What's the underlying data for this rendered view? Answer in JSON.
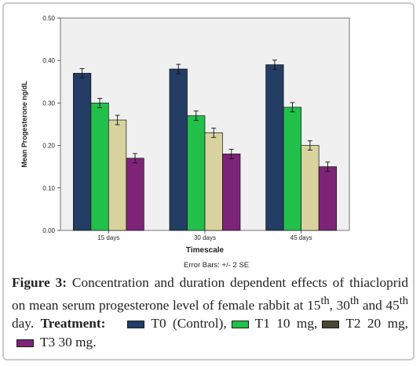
{
  "chart_data": {
    "type": "bar",
    "categories": [
      "15 days",
      "30 days",
      "45 days"
    ],
    "series": [
      {
        "name": "T0",
        "values": [
          0.37,
          0.38,
          0.39
        ],
        "errors": [
          0.011,
          0.011,
          0.011
        ],
        "color": "#233d64"
      },
      {
        "name": "T1 10 mg",
        "values": [
          0.3,
          0.27,
          0.29
        ],
        "errors": [
          0.011,
          0.011,
          0.011
        ],
        "color": "#22c04a"
      },
      {
        "name": "T2 20 mg",
        "values": [
          0.26,
          0.23,
          0.2
        ],
        "errors": [
          0.011,
          0.011,
          0.011
        ],
        "color": "#d8d39e"
      },
      {
        "name": "T3 30 mg",
        "values": [
          0.17,
          0.18,
          0.15
        ],
        "errors": [
          0.011,
          0.011,
          0.011
        ],
        "color": "#7d2478"
      }
    ],
    "xlabel": "Timescale",
    "ylabel": "Mean Progesterone ng/dL",
    "ylim": [
      0,
      0.5
    ],
    "yticks": [
      "0.00",
      "0.10",
      "0.20",
      "0.30",
      "0.40",
      "0.50"
    ],
    "error_note": "Error Bars: +/- 2 SE",
    "plot_background": "#f0f0f0",
    "grid": false
  },
  "caption": {
    "label": "Figure 3:",
    "text_1": "Concentration and duration dependent effects of thiacloprid on mean serum progesterone level of female rabbit at 15",
    "sup_1": "th",
    "text_2": ", 30",
    "sup_2": "th",
    "text_3": " and 45",
    "sup_3": "th",
    "text_4": " day.",
    "treatment_label": "Treatment:",
    "legend": [
      {
        "text": "T0 (Control),",
        "color": "#233d64"
      },
      {
        "text": "T1 10 mg,",
        "color": "#22c04a"
      },
      {
        "text": "T2 20 mg,",
        "color": "#4b4635"
      },
      {
        "text": "T3 30 mg.",
        "color": "#7d2478"
      }
    ]
  }
}
